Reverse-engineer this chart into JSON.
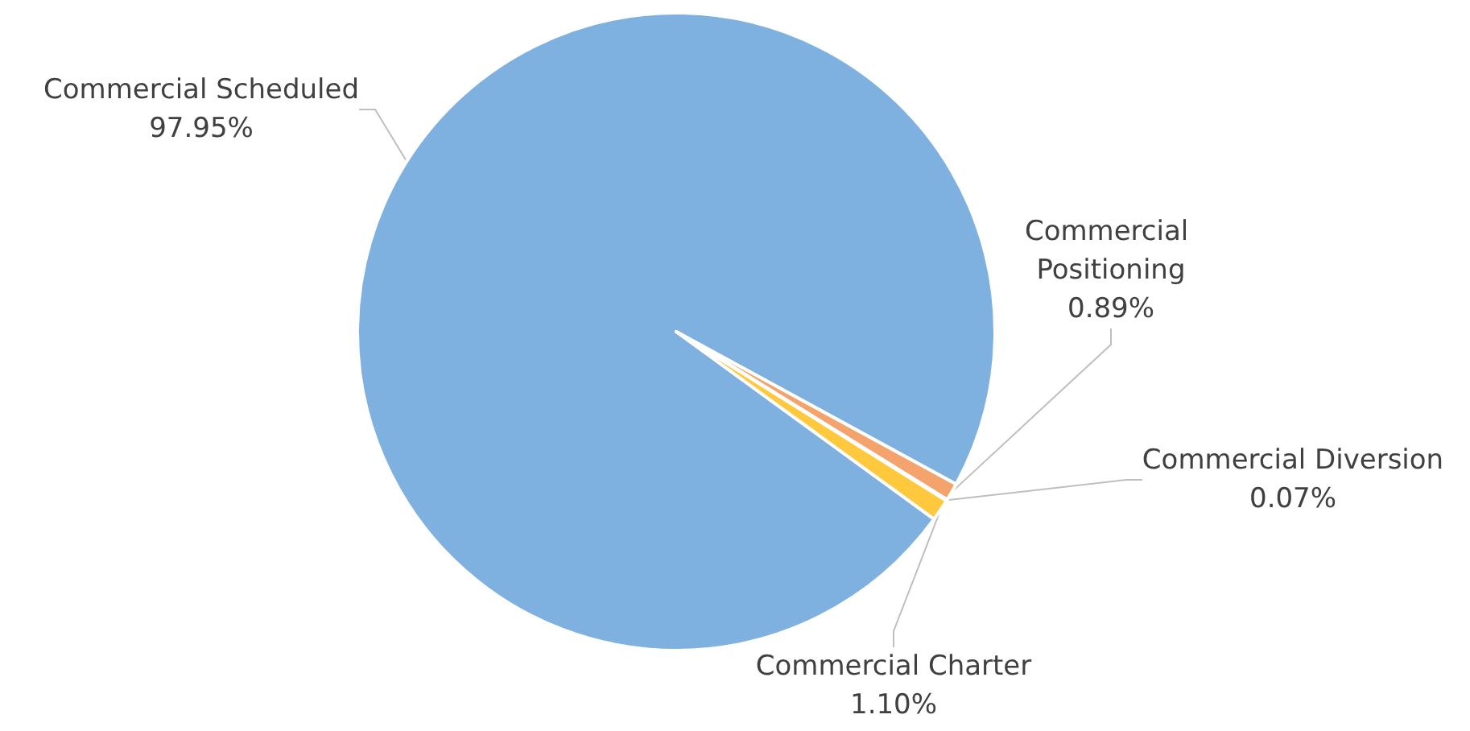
{
  "chart_data": {
    "type": "pie",
    "categories": [
      "Commercial Scheduled",
      "Commercial Positioning",
      "Commercial Diversion",
      "Commercial Charter"
    ],
    "values": [
      97.95,
      0.89,
      0.07,
      1.1
    ],
    "value_labels": [
      "97.95%",
      "0.89%",
      "0.07%",
      "1.10%"
    ],
    "colors": [
      "#7eb0e0",
      "#f4a36c",
      "#a5a5a5",
      "#ffc83d"
    ],
    "legend": false
  }
}
